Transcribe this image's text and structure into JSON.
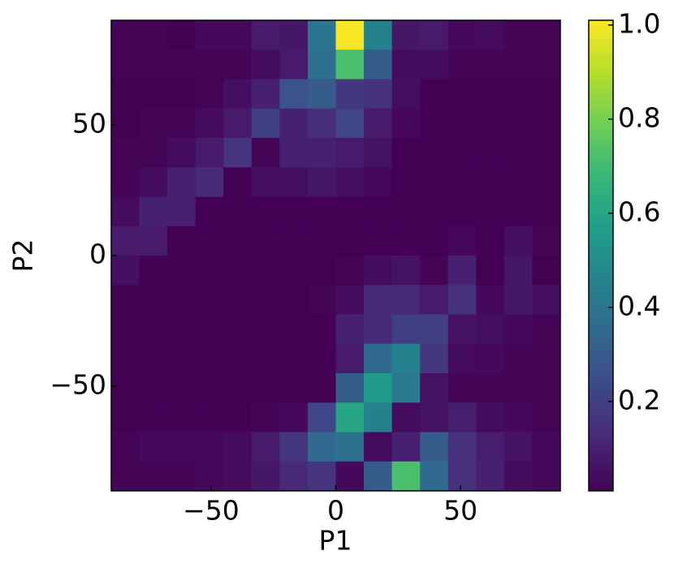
{
  "chart_data": {
    "type": "heatmap",
    "xlabel": "P1",
    "ylabel": "P2",
    "xlim": [
      -90,
      90
    ],
    "ylim": [
      -90,
      90
    ],
    "xticks": [
      {
        "value": -50,
        "label": "−50"
      },
      0,
      50
    ],
    "yticks": [
      {
        "value": -50,
        "label": "−50"
      },
      0,
      50
    ],
    "colormap": "viridis",
    "clim": [
      0.01,
      1.01
    ],
    "cticks": [
      0.2,
      0.4,
      0.6,
      0.8,
      {
        "value": 1,
        "label": "1.0"
      }
    ],
    "z": [
      [
        0.02,
        0.02,
        0.01,
        0.03,
        0.03,
        0.08,
        0.07,
        0.4,
        1.0,
        0.45,
        0.07,
        0.08,
        0.03,
        0.04,
        0.02,
        0.02
      ],
      [
        0.02,
        0.02,
        0.02,
        0.02,
        0.02,
        0.04,
        0.08,
        0.38,
        0.72,
        0.3,
        0.04,
        0.04,
        0.02,
        0.02,
        0.02,
        0.02
      ],
      [
        0.01,
        0.01,
        0.01,
        0.02,
        0.05,
        0.1,
        0.27,
        0.3,
        0.17,
        0.15,
        0.05,
        0.01,
        0.01,
        0.01,
        0.01,
        0.01
      ],
      [
        0.01,
        0.02,
        0.02,
        0.04,
        0.08,
        0.2,
        0.1,
        0.14,
        0.22,
        0.08,
        0.03,
        0.01,
        0.01,
        0.01,
        0.01,
        0.01
      ],
      [
        0.02,
        0.02,
        0.04,
        0.08,
        0.16,
        0.02,
        0.1,
        0.1,
        0.08,
        0.06,
        0.01,
        0.01,
        0.01,
        0.01,
        0.01,
        0.01
      ],
      [
        0.02,
        0.04,
        0.1,
        0.13,
        0.01,
        0.05,
        0.05,
        0.07,
        0.05,
        0.03,
        0.01,
        0.01,
        0.01,
        0.01,
        0.01,
        0.01
      ],
      [
        0.04,
        0.1,
        0.1,
        0.01,
        0.01,
        0.01,
        0.01,
        0.01,
        0.01,
        0.01,
        0.01,
        0.01,
        0.01,
        0.01,
        0.01,
        0.01
      ],
      [
        0.08,
        0.08,
        0.01,
        0.01,
        0.01,
        0.01,
        0.01,
        0.01,
        0.01,
        0.01,
        0.01,
        0.01,
        0.03,
        0.01,
        0.05,
        0.02
      ],
      [
        0.05,
        0.01,
        0.01,
        0.01,
        0.01,
        0.01,
        0.01,
        0.01,
        0.02,
        0.04,
        0.06,
        0.02,
        0.1,
        0.01,
        0.07,
        0.01
      ],
      [
        0.01,
        0.01,
        0.01,
        0.01,
        0.01,
        0.01,
        0.01,
        0.02,
        0.04,
        0.12,
        0.12,
        0.08,
        0.15,
        0.03,
        0.07,
        0.05
      ],
      [
        0.01,
        0.01,
        0.01,
        0.01,
        0.01,
        0.01,
        0.01,
        0.01,
        0.1,
        0.13,
        0.2,
        0.2,
        0.06,
        0.05,
        0.03,
        0.02
      ],
      [
        0.01,
        0.01,
        0.01,
        0.01,
        0.01,
        0.01,
        0.01,
        0.01,
        0.08,
        0.35,
        0.45,
        0.17,
        0.04,
        0.03,
        0.02,
        0.02
      ],
      [
        0.01,
        0.01,
        0.01,
        0.01,
        0.01,
        0.01,
        0.01,
        0.01,
        0.3,
        0.55,
        0.42,
        0.06,
        0.02,
        0.02,
        0.02,
        0.02
      ],
      [
        0.01,
        0.01,
        0.01,
        0.01,
        0.01,
        0.02,
        0.03,
        0.22,
        0.6,
        0.45,
        0.04,
        0.06,
        0.09,
        0.04,
        0.03,
        0.02
      ],
      [
        0.02,
        0.03,
        0.03,
        0.03,
        0.04,
        0.08,
        0.17,
        0.35,
        0.38,
        0.04,
        0.1,
        0.3,
        0.15,
        0.09,
        0.06,
        0.03
      ],
      [
        0.02,
        0.02,
        0.02,
        0.03,
        0.04,
        0.07,
        0.12,
        0.16,
        0.03,
        0.3,
        0.72,
        0.35,
        0.15,
        0.1,
        0.04,
        0.03
      ]
    ]
  }
}
